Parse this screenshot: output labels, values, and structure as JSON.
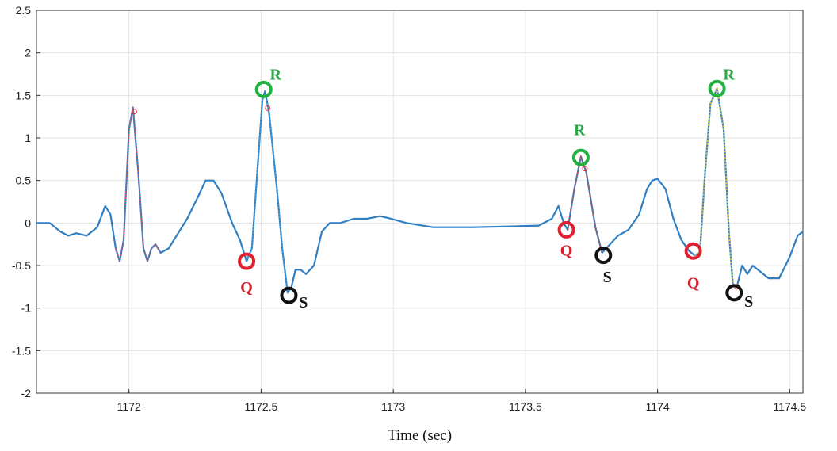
{
  "chart_data": {
    "type": "line",
    "title": "",
    "xlabel": "Time (sec)",
    "ylabel": "",
    "xlim": [
      1171.65,
      1174.55
    ],
    "ylim": [
      -2,
      2.5
    ],
    "x_ticks": [
      1172,
      1172.5,
      1173,
      1173.5,
      1174,
      1174.5
    ],
    "x_tick_labels": [
      "1172",
      "1172.5",
      "1173",
      "1173.5",
      "1174",
      "1174.5"
    ],
    "y_ticks": [
      -2,
      -1.5,
      -1,
      -0.5,
      0,
      0.5,
      1,
      1.5,
      2,
      2.5
    ],
    "y_tick_labels": [
      "-2",
      "-1.5",
      "-1",
      "-0.5",
      "0",
      "0.5",
      "1",
      "1.5",
      "2",
      "2.5"
    ],
    "grid": true,
    "colors": {
      "signal": "#2f7fc2",
      "highlight_1": "#c05a70",
      "highlight_2": "#4a9fd8",
      "highlight_3": "#c0504d",
      "highlight_4": "#d8c84a",
      "q_marker": "#e02030",
      "r_marker": "#22b040",
      "s_marker": "#111111",
      "q_label": "#d42030",
      "r_label": "#2aa84a",
      "s_label": "#111111"
    },
    "series": [
      {
        "values": [
          [
            1171.65,
            0
          ],
          [
            1171.7,
            0
          ],
          [
            1171.74,
            -0.1
          ],
          [
            1171.77,
            -0.15
          ],
          [
            1171.8,
            -0.12
          ],
          [
            1171.84,
            -0.15
          ],
          [
            1171.88,
            -0.05
          ],
          [
            1171.91,
            0.2
          ],
          [
            1171.93,
            0.1
          ],
          [
            1171.95,
            -0.3
          ],
          [
            1171.965,
            -0.45
          ],
          [
            1171.98,
            -0.2
          ],
          [
            1172.0,
            1.1
          ],
          [
            1172.015,
            1.36
          ],
          [
            1172.035,
            0.6
          ],
          [
            1172.055,
            -0.3
          ],
          [
            1172.07,
            -0.45
          ],
          [
            1172.085,
            -0.3
          ],
          [
            1172.1,
            -0.25
          ],
          [
            1172.12,
            -0.35
          ],
          [
            1172.15,
            -0.3
          ],
          [
            1172.18,
            -0.15
          ],
          [
            1172.22,
            0.05
          ],
          [
            1172.26,
            0.3
          ],
          [
            1172.29,
            0.5
          ],
          [
            1172.32,
            0.5
          ],
          [
            1172.35,
            0.35
          ],
          [
            1172.39,
            0.0
          ],
          [
            1172.42,
            -0.2
          ],
          [
            1172.445,
            -0.45
          ],
          [
            1172.465,
            -0.3
          ],
          [
            1172.49,
            0.8
          ],
          [
            1172.505,
            1.45
          ],
          [
            1172.515,
            1.55
          ],
          [
            1172.53,
            1.3
          ],
          [
            1172.56,
            0.4
          ],
          [
            1172.58,
            -0.3
          ],
          [
            1172.6,
            -0.82
          ],
          [
            1172.615,
            -0.75
          ],
          [
            1172.63,
            -0.55
          ],
          [
            1172.65,
            -0.55
          ],
          [
            1172.67,
            -0.6
          ],
          [
            1172.7,
            -0.5
          ],
          [
            1172.73,
            -0.1
          ],
          [
            1172.76,
            0.0
          ],
          [
            1172.8,
            0.0
          ],
          [
            1172.85,
            0.05
          ],
          [
            1172.9,
            0.05
          ],
          [
            1172.95,
            0.08
          ],
          [
            1172.98,
            0.06
          ],
          [
            1173.05,
            0.0
          ],
          [
            1173.15,
            -0.05
          ],
          [
            1173.3,
            -0.05
          ],
          [
            1173.45,
            -0.04
          ],
          [
            1173.55,
            -0.03
          ],
          [
            1173.6,
            0.05
          ],
          [
            1173.625,
            0.2
          ],
          [
            1173.645,
            0.0
          ],
          [
            1173.66,
            -0.08
          ],
          [
            1173.685,
            0.4
          ],
          [
            1173.71,
            0.78
          ],
          [
            1173.73,
            0.6
          ],
          [
            1173.765,
            -0.05
          ],
          [
            1173.79,
            -0.35
          ],
          [
            1173.82,
            -0.25
          ],
          [
            1173.85,
            -0.15
          ],
          [
            1173.89,
            -0.08
          ],
          [
            1173.93,
            0.1
          ],
          [
            1173.96,
            0.4
          ],
          [
            1173.98,
            0.5
          ],
          [
            1174.0,
            0.52
          ],
          [
            1174.03,
            0.4
          ],
          [
            1174.06,
            0.05
          ],
          [
            1174.09,
            -0.2
          ],
          [
            1174.12,
            -0.33
          ],
          [
            1174.14,
            -0.38
          ],
          [
            1174.16,
            -0.35
          ],
          [
            1174.18,
            0.6
          ],
          [
            1174.2,
            1.4
          ],
          [
            1174.225,
            1.58
          ],
          [
            1174.25,
            1.1
          ],
          [
            1174.27,
            -0.1
          ],
          [
            1174.285,
            -0.72
          ],
          [
            1174.3,
            -0.75
          ],
          [
            1174.32,
            -0.5
          ],
          [
            1174.34,
            -0.6
          ],
          [
            1174.36,
            -0.5
          ],
          [
            1174.38,
            -0.55
          ],
          [
            1174.42,
            -0.65
          ],
          [
            1174.46,
            -0.65
          ],
          [
            1174.5,
            -0.4
          ],
          [
            1174.53,
            -0.15
          ],
          [
            1174.55,
            -0.1
          ]
        ]
      }
    ],
    "highlights": [
      {
        "color_key": "highlight_1",
        "x_range": [
          1171.95,
          1172.12
        ]
      },
      {
        "color_key": "highlight_2",
        "x_range": [
          1172.44,
          1172.6
        ]
      },
      {
        "color_key": "highlight_3",
        "x_range": [
          1173.66,
          1173.79
        ]
      },
      {
        "color_key": "highlight_4",
        "x_range": [
          1174.14,
          1174.3
        ]
      }
    ],
    "small_markers": [
      {
        "x": 1172.02,
        "y": 1.31
      },
      {
        "x": 1172.525,
        "y": 1.35
      },
      {
        "x": 1173.725,
        "y": 0.64
      },
      {
        "x": 1174.3,
        "y": -0.75
      }
    ],
    "annotations": [
      {
        "label": "R",
        "kind": "R",
        "circle": [
          1172.51,
          1.57
        ],
        "text": [
          1172.555,
          1.75
        ]
      },
      {
        "label": "Q",
        "kind": "Q",
        "circle": [
          1172.445,
          -0.45
        ],
        "text": [
          1172.445,
          -0.75
        ]
      },
      {
        "label": "S",
        "kind": "S",
        "circle": [
          1172.605,
          -0.85
        ],
        "text": [
          1172.66,
          -0.93
        ]
      },
      {
        "label": "R",
        "kind": "R",
        "circle": [
          1173.71,
          0.77
        ],
        "text": [
          1173.705,
          1.1
        ]
      },
      {
        "label": "Q",
        "kind": "Q",
        "circle": [
          1173.655,
          -0.08
        ],
        "text": [
          1173.655,
          -0.32
        ]
      },
      {
        "label": "S",
        "kind": "S",
        "circle": [
          1173.795,
          -0.38
        ],
        "text": [
          1173.81,
          -0.63
        ]
      },
      {
        "label": "R",
        "kind": "R",
        "circle": [
          1174.225,
          1.58
        ],
        "text": [
          1174.27,
          1.75
        ]
      },
      {
        "label": "Q",
        "kind": "Q",
        "circle": [
          1174.135,
          -0.33
        ],
        "text": [
          1174.135,
          -0.7
        ]
      },
      {
        "label": "S",
        "kind": "S",
        "circle": [
          1174.29,
          -0.82
        ],
        "text": [
          1174.345,
          -0.92
        ]
      }
    ]
  }
}
